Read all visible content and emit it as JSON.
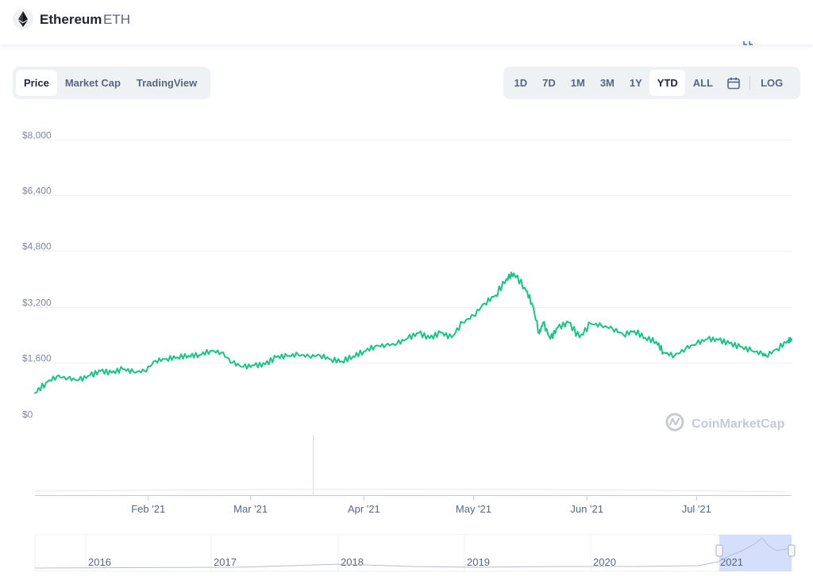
{
  "header": {
    "coin_name": "Ethereum",
    "coin_symbol": "ETH",
    "logo_icon": "ethereum-diamond-icon"
  },
  "chart_tabs": {
    "items": [
      {
        "label": "Price",
        "active": true
      },
      {
        "label": "Market Cap",
        "active": false
      },
      {
        "label": "TradingView",
        "active": false
      }
    ]
  },
  "range_tabs": {
    "items": [
      {
        "label": "1D",
        "active": false
      },
      {
        "label": "7D",
        "active": false
      },
      {
        "label": "1M",
        "active": false
      },
      {
        "label": "3M",
        "active": false
      },
      {
        "label": "1Y",
        "active": false
      },
      {
        "label": "YTD",
        "active": true
      },
      {
        "label": "ALL",
        "active": false
      }
    ],
    "calendar_icon": "calendar-icon",
    "log_label": "LOG"
  },
  "watermark": {
    "text": "CoinMarketCap",
    "icon": "coinmarketcap-logo-icon"
  },
  "colors": {
    "line": "#16c784",
    "grid": "#eff2f5",
    "axis_text": "#808a9d",
    "button_bg": "#eff2f5",
    "navigator_highlight": "#cdd9fb"
  },
  "chart_data": {
    "type": "line",
    "title": "",
    "xlabel": "",
    "ylabel": "",
    "ylim": [
      0,
      8000
    ],
    "y_ticks": [
      0,
      1600,
      3200,
      4800,
      6400,
      8000
    ],
    "y_tick_labels": [
      "$0",
      "$1,600",
      "$3,200",
      "$4,800",
      "$6,400",
      "$8,000"
    ],
    "x_ticks": [
      "2021-02-01",
      "2021-03-01",
      "2021-04-01",
      "2021-05-01",
      "2021-06-01",
      "2021-07-01"
    ],
    "x_tick_labels": [
      "Feb '21",
      "Mar '21",
      "Apr '21",
      "May '21",
      "Jun '21",
      "Jul '21"
    ],
    "x_range": [
      "2021-01-01",
      "2021-07-27"
    ],
    "grid": true,
    "series": [
      {
        "x": [
          "2021-01-01",
          "2021-01-04",
          "2021-01-07",
          "2021-01-10",
          "2021-01-13",
          "2021-01-16",
          "2021-01-19",
          "2021-01-22",
          "2021-01-25",
          "2021-01-28",
          "2021-01-31",
          "2021-02-03",
          "2021-02-06",
          "2021-02-09",
          "2021-02-12",
          "2021-02-15",
          "2021-02-18",
          "2021-02-21",
          "2021-02-24",
          "2021-02-27",
          "2021-03-02",
          "2021-03-05",
          "2021-03-08",
          "2021-03-11",
          "2021-03-14",
          "2021-03-17",
          "2021-03-20",
          "2021-03-23",
          "2021-03-26",
          "2021-03-29",
          "2021-04-01",
          "2021-04-04",
          "2021-04-07",
          "2021-04-10",
          "2021-04-13",
          "2021-04-16",
          "2021-04-19",
          "2021-04-22",
          "2021-04-25",
          "2021-04-28",
          "2021-05-01",
          "2021-05-04",
          "2021-05-07",
          "2021-05-10",
          "2021-05-12",
          "2021-05-15",
          "2021-05-17",
          "2021-05-19",
          "2021-05-20",
          "2021-05-22",
          "2021-05-24",
          "2021-05-27",
          "2021-05-30",
          "2021-06-02",
          "2021-06-05",
          "2021-06-08",
          "2021-06-11",
          "2021-06-14",
          "2021-06-17",
          "2021-06-20",
          "2021-06-22",
          "2021-06-25",
          "2021-06-28",
          "2021-07-01",
          "2021-07-04",
          "2021-07-07",
          "2021-07-10",
          "2021-07-13",
          "2021-07-16",
          "2021-07-19",
          "2021-07-20",
          "2021-07-23",
          "2021-07-26",
          "2021-07-27"
        ],
        "values": [
          730,
          1020,
          1210,
          1150,
          1100,
          1230,
          1360,
          1310,
          1420,
          1330,
          1360,
          1650,
          1710,
          1760,
          1800,
          1820,
          1940,
          1890,
          1600,
          1480,
          1520,
          1550,
          1760,
          1790,
          1830,
          1780,
          1810,
          1690,
          1640,
          1780,
          1920,
          2070,
          2100,
          2140,
          2300,
          2450,
          2300,
          2460,
          2320,
          2750,
          2950,
          3300,
          3530,
          4000,
          4160,
          3750,
          3300,
          2430,
          2750,
          2280,
          2600,
          2750,
          2320,
          2720,
          2660,
          2580,
          2400,
          2510,
          2310,
          2200,
          1890,
          1800,
          2000,
          2150,
          2280,
          2250,
          2150,
          2050,
          1950,
          1850,
          1800,
          1990,
          2230,
          2270
        ]
      }
    ],
    "navigator": {
      "x_tick_labels": [
        "2016",
        "2017",
        "2018",
        "2019",
        "2020",
        "2021"
      ]
    }
  }
}
